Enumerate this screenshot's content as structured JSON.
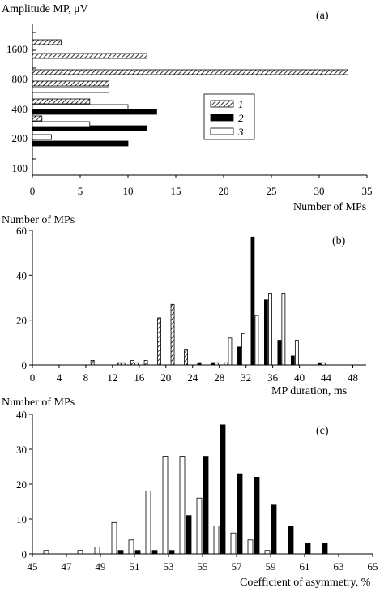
{
  "patterns": {
    "s1": "hatch",
    "s2": "#000000",
    "s3": "#ffffff"
  },
  "chart_data": [
    {
      "type": "bar",
      "orientation": "horizontal",
      "panel_label": "(a)",
      "ylabel": "Amplitude MP, μV",
      "xlabel": "Number of MPs",
      "xlim": [
        0,
        35
      ],
      "xticks": [
        "0",
        "5",
        "10",
        "15",
        "20",
        "25",
        "30",
        "35"
      ],
      "yticks": [
        "1600",
        "800",
        "400",
        "200",
        "100"
      ],
      "legend": [
        "1",
        "2",
        "3"
      ],
      "legend_position": "center-right",
      "series": [
        {
          "name": "1",
          "values": [
            3,
            12,
            33,
            8,
            6,
            1
          ]
        },
        {
          "name": "2",
          "values": [
            0,
            0,
            0,
            0,
            13,
            12,
            10
          ]
        },
        {
          "name": "3",
          "values": [
            0,
            0,
            0,
            8,
            10,
            6,
            2
          ]
        }
      ]
    },
    {
      "type": "bar",
      "panel_label": "(b)",
      "ylabel": "Number of MPs",
      "xlabel": "MP duration, ms",
      "ylim": [
        0,
        60
      ],
      "yticks": [
        "0",
        "20",
        "40",
        "60"
      ],
      "xlim": [
        0,
        50
      ],
      "xticks": [
        "0",
        "4",
        "8",
        "12",
        "16",
        "20",
        "24",
        "28",
        "32",
        "36",
        "40",
        "44",
        "48"
      ],
      "series": [
        {
          "name": "1",
          "x": [
            9,
            13,
            15,
            17,
            19,
            21,
            23,
            25,
            27,
            29,
            31
          ],
          "values": [
            2,
            1,
            2,
            2,
            21,
            27,
            7,
            1,
            1,
            1,
            1
          ]
        },
        {
          "name": "2",
          "x": [
            25,
            27,
            29,
            31,
            33,
            35,
            37,
            39,
            43
          ],
          "values": [
            1,
            1,
            0,
            8,
            57,
            29,
            11,
            4,
            1
          ]
        },
        {
          "name": "3",
          "x": [
            13,
            15,
            27,
            29,
            31,
            33,
            35,
            37,
            39,
            43
          ],
          "values": [
            1,
            1,
            1,
            12,
            14,
            22,
            32,
            32,
            11,
            1
          ]
        }
      ]
    },
    {
      "type": "bar",
      "panel_label": "(c)",
      "ylabel": "Number of MPs",
      "xlabel": "Coefficient of asymmetry, %",
      "ylim": [
        0,
        40
      ],
      "yticks": [
        "0",
        "10",
        "20",
        "30",
        "40"
      ],
      "xlim": [
        45,
        65
      ],
      "xticks": [
        "45",
        "47",
        "49",
        "51",
        "53",
        "55",
        "57",
        "59",
        "61",
        "63",
        "65"
      ],
      "series": [
        {
          "name": "2",
          "x": [
            50,
            51,
            52,
            53,
            54,
            55,
            56,
            57,
            58,
            59,
            60,
            61,
            62
          ],
          "values": [
            1,
            1,
            1,
            1,
            11,
            28,
            37,
            23,
            22,
            14,
            8,
            3,
            3
          ]
        },
        {
          "name": "3",
          "x": [
            46,
            48,
            49,
            50,
            51,
            52,
            53,
            54,
            55,
            56,
            57,
            58,
            59
          ],
          "values": [
            1,
            1,
            2,
            9,
            4,
            18,
            28,
            28,
            16,
            8,
            6,
            4,
            1
          ]
        }
      ]
    }
  ]
}
